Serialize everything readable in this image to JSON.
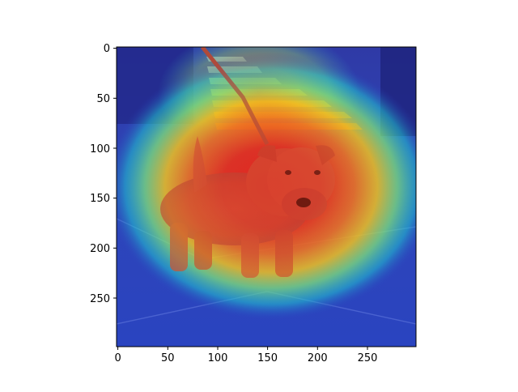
{
  "figure": {
    "image_description": "Heatmap overlay (jet colormap) on a photo of a reddish-brown terrier dog on a leash standing on a sidewalk in front of outdoor steps",
    "subject": "dog",
    "background_color": "#ffffff",
    "colormap": "jet",
    "overlay_colors": {
      "high": "#e8241a",
      "mid_high": "#f0c020",
      "mid": "#7de07a",
      "mid_low": "#20c8d0",
      "low": "#2a3cbe"
    }
  },
  "axes": {
    "x_range": [
      0,
      299
    ],
    "y_range": [
      0,
      299
    ],
    "y_inverted": true,
    "x_ticks": [
      "0",
      "50",
      "100",
      "150",
      "200",
      "250"
    ],
    "y_ticks": [
      "0",
      "50",
      "100",
      "150",
      "200",
      "250"
    ]
  }
}
